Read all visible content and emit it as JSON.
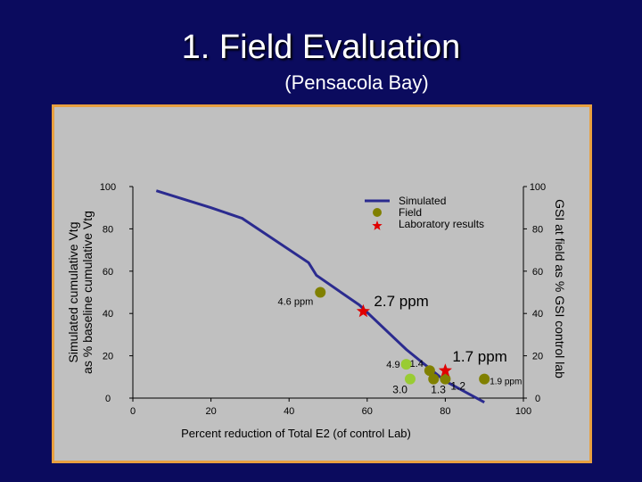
{
  "slide": {
    "title": "1.   Field Evaluation",
    "subtitle": "(Pensacola Bay)"
  },
  "chart_data": {
    "type": "scatter",
    "xlabel": "Percent reduction of Total E2 (of control Lab)",
    "ylabel_left": [
      "Simulated cumulative Vtg",
      "as % baseline cumulative Vtg"
    ],
    "ylabel_right": "GSI at field as % GSI control lab",
    "xlim": [
      0,
      100
    ],
    "ylim": [
      0,
      100
    ],
    "x_ticks": [
      0,
      20,
      40,
      60,
      80,
      100
    ],
    "y_ticks": [
      0,
      20,
      40,
      60,
      80,
      100
    ],
    "legend": {
      "position": "top-right",
      "entries": [
        "Simulated",
        "Field",
        "Laboratory results"
      ]
    },
    "colors": {
      "simulated": "#2b2b8f",
      "field_dark": "#808000",
      "field_light": "#99cc33",
      "lab": "#e00000"
    },
    "series": [
      {
        "name": "Simulated",
        "kind": "line",
        "points": [
          [
            6,
            98
          ],
          [
            20,
            90
          ],
          [
            28,
            85
          ],
          [
            45,
            64
          ],
          [
            47,
            58
          ],
          [
            58,
            44
          ],
          [
            70,
            23
          ],
          [
            80,
            8
          ],
          [
            90,
            -2
          ]
        ]
      },
      {
        "name": "Field",
        "kind": "scatter",
        "points": [
          {
            "x": 48,
            "y": 50,
            "shade": "dark",
            "label": "4.6 ppm"
          },
          {
            "x": 70,
            "y": 16,
            "shade": "light",
            "label": "4.9"
          },
          {
            "x": 76,
            "y": 13,
            "shade": "dark",
            "label": "1.4"
          },
          {
            "x": 71,
            "y": 9,
            "shade": "light",
            "label": "3.0"
          },
          {
            "x": 77,
            "y": 9,
            "shade": "dark",
            "label": "1.3"
          },
          {
            "x": 80,
            "y": 9,
            "shade": "dark",
            "label": "1.2"
          },
          {
            "x": 90,
            "y": 9,
            "shade": "dark",
            "label": "1.9 ppm"
          }
        ]
      },
      {
        "name": "Laboratory results",
        "kind": "scatter",
        "points": [
          {
            "x": 59,
            "y": 41,
            "label": "2.7 ppm"
          },
          {
            "x": 80,
            "y": 13,
            "label": "1.7 ppm"
          }
        ]
      }
    ]
  }
}
